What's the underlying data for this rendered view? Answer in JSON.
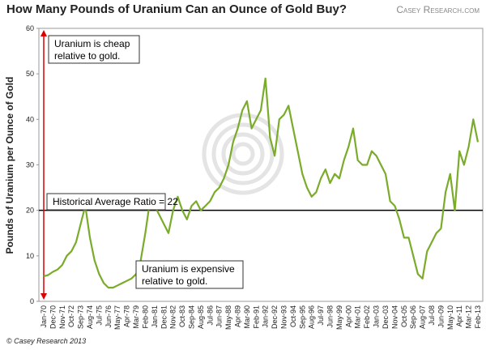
{
  "chart_data": {
    "type": "line",
    "title": "How Many Pounds of Uranium Can an Ounce of Gold Buy?",
    "logo": "Casey Research.com",
    "source": "© Casey Research 2013",
    "y_label": "Pounds of Uranium per Ounce of Gold",
    "color": "#7aab2a",
    "ylim": [
      0,
      60
    ],
    "yticks": [
      0,
      10,
      20,
      30,
      40,
      50,
      60
    ],
    "reference_line": 20,
    "annotations": [
      {
        "lines": [
          "Uranium is cheap",
          "relative to gold."
        ]
      },
      {
        "lines": [
          "Historical Average Ratio = 22"
        ]
      },
      {
        "lines": [
          "Uranium is expensive",
          "relative to gold."
        ]
      }
    ],
    "categories": [
      "Jan-70",
      null,
      "Dec-70",
      null,
      "Nov-71",
      null,
      "Oct-72",
      null,
      "Sep-73",
      null,
      "Aug-74",
      null,
      "Jul-75",
      null,
      "Jun-76",
      null,
      "May-77",
      null,
      "Apr-78",
      null,
      "Mar-79",
      null,
      "Feb-80",
      null,
      "Jan-81",
      null,
      "Dec-81",
      null,
      "Nov-82",
      null,
      "Oct-83",
      null,
      "Sep-84",
      null,
      "Aug-85",
      null,
      "Jul-86",
      null,
      "Jun-87",
      null,
      "May-88",
      null,
      "Apr-89",
      null,
      "Mar-90",
      null,
      "Feb-91",
      null,
      "Jan-92",
      null,
      "Dec-92",
      null,
      "Nov-93",
      null,
      "Oct-94",
      null,
      "Sep-95",
      null,
      "Aug-96",
      null,
      "Jul-97",
      null,
      "Jun-98",
      null,
      "May-99",
      null,
      "Apr-00",
      null,
      "Mar-01",
      null,
      "Feb-02",
      null,
      "Jan-03",
      null,
      "Dec-03",
      null,
      "Nov-04",
      null,
      "Oct-05",
      null,
      "Sep-06",
      null,
      "Aug-07",
      null,
      "Jul-08",
      null,
      "Jun-09",
      null,
      "May-10",
      null,
      "Apr-11",
      null,
      "Mar-12",
      null,
      "Feb-13"
    ],
    "values": [
      5.5,
      5.8,
      6.5,
      7,
      8,
      10,
      11,
      13,
      17,
      21,
      14,
      9,
      6,
      4,
      3,
      3,
      3.5,
      4,
      4.5,
      5,
      6,
      9,
      15,
      22,
      21,
      19,
      17,
      15,
      20,
      23,
      20,
      18,
      21,
      22,
      20,
      21,
      22,
      24,
      25,
      27,
      30,
      35,
      38,
      42,
      44,
      38,
      40,
      42,
      49,
      36,
      32,
      40,
      41,
      43,
      38,
      33,
      28,
      25,
      23,
      24,
      27,
      29,
      26,
      28,
      27,
      31,
      34,
      38,
      31,
      30,
      30,
      33,
      32,
      30,
      28,
      22,
      21,
      18,
      14,
      14,
      10,
      6,
      5,
      11,
      13,
      15,
      16,
      24,
      28,
      20,
      33,
      30,
      34,
      40,
      35
    ]
  }
}
